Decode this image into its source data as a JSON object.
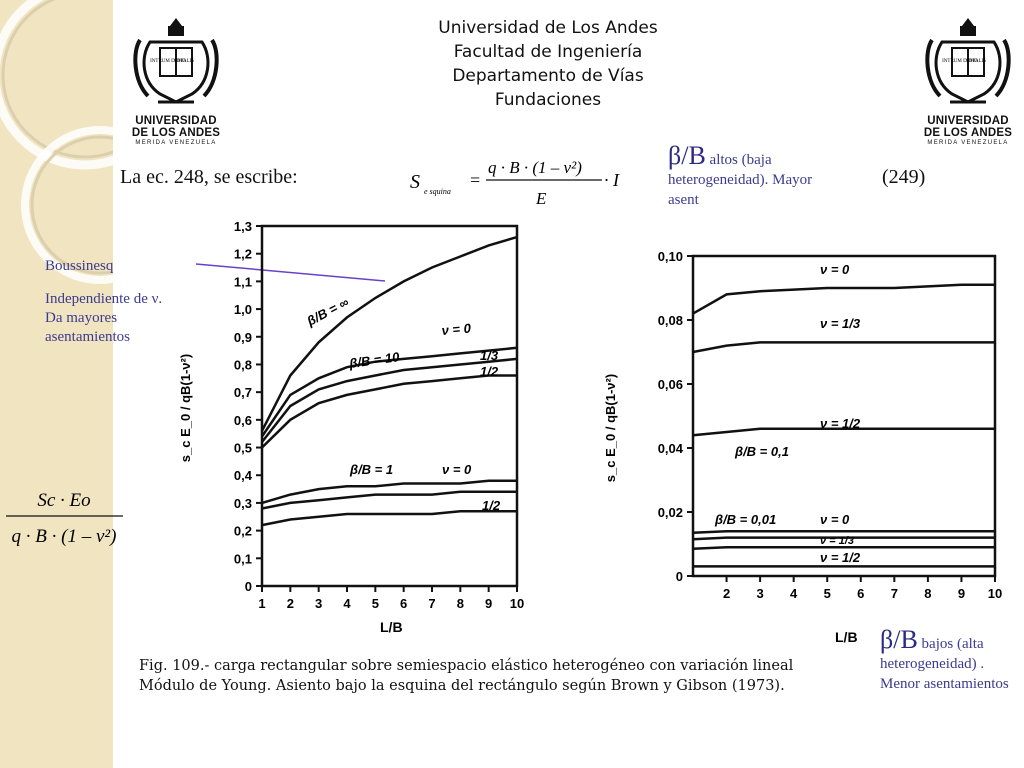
{
  "header": {
    "line1": "Universidad de Los Andes",
    "line2": "Facultad de Ingeniería",
    "line3": "Departamento de Vías",
    "line4": "Fundaciones"
  },
  "logo": {
    "line1": "UNIVERSIDAD",
    "line2": "DE LOS ANDES",
    "line3": "MERIDA VENEZUELA",
    "book_left": "INTRUM DEMO",
    "book_right": "SOTALIS"
  },
  "intro_text": "La ec. 248, se escribe:",
  "equation_number": "(249)",
  "formula": {
    "lhs": "S",
    "lhs_sub": "e squina",
    "num": "q · B · (1 – ν²)",
    "den": "E",
    "tail": "· I"
  },
  "annotation_top": {
    "symbol": "β/B",
    "text": " altos (baja heterogeneidad). Mayor asent"
  },
  "annotation_bottom": {
    "symbol": "β/B",
    "text": " bajos (alta heterogeneidad) . Menor asentamientos"
  },
  "boussinesq_label": "Boussinesq",
  "independent_note": "Independiente de ν. Da mayores asentamientos",
  "lhs_fraction": {
    "num": "Sc · Eo",
    "den": "q · B · (1 – ν²)"
  },
  "caption": "Fig. 109.- carga rectangular sobre semiespacio elástico heterogéneo con variación lineal  Módulo de Young. Asiento bajo la esquina del rectángulo según Brown y Gibson (1973).",
  "colors": {
    "sidebar": "#f1e4c1",
    "annotation": "#3b3b8f",
    "pointer_line": "#6a3fc9"
  },
  "chart_data": [
    {
      "type": "line",
      "xlabel": "L/B",
      "ylabel": "s_c E_0 / qB(1-ν²)",
      "xlim": [
        1,
        10
      ],
      "ylim": [
        0,
        1.3
      ],
      "x_ticks": [
        "1",
        "2",
        "3",
        "4",
        "5",
        "6",
        "7",
        "8",
        "9",
        "10"
      ],
      "y_ticks": [
        "0",
        "0,1",
        "0,2",
        "0,3",
        "0,4",
        "0,5",
        "0,6",
        "0,7",
        "0,8",
        "0,9",
        "1,0",
        "1,1",
        "1,2",
        "1,3"
      ],
      "labels": {
        "inf": "β/B = ∞",
        "ten": "β/B = 10",
        "one": "β/B = 1",
        "nu0a": "ν = 0",
        "nu13a": "1/3",
        "nu12a": "1/2",
        "nu0b": "ν = 0",
        "nu12b": "1/2"
      },
      "series": [
        {
          "x": [
            1,
            2,
            3,
            4,
            5,
            6,
            7,
            8,
            9,
            10
          ],
          "values": [
            0.56,
            0.76,
            0.88,
            0.97,
            1.04,
            1.1,
            1.15,
            1.19,
            1.23,
            1.26
          ]
        },
        {
          "x": [
            1,
            2,
            3,
            4,
            5,
            6,
            7,
            8,
            9,
            10
          ],
          "values": [
            0.54,
            0.69,
            0.75,
            0.79,
            0.81,
            0.82,
            0.83,
            0.84,
            0.85,
            0.86
          ]
        },
        {
          "x": [
            1,
            2,
            3,
            4,
            5,
            6,
            7,
            8,
            9,
            10
          ],
          "values": [
            0.52,
            0.65,
            0.71,
            0.74,
            0.76,
            0.78,
            0.79,
            0.8,
            0.81,
            0.82
          ]
        },
        {
          "x": [
            1,
            2,
            3,
            4,
            5,
            6,
            7,
            8,
            9,
            10
          ],
          "values": [
            0.5,
            0.6,
            0.66,
            0.69,
            0.71,
            0.73,
            0.74,
            0.75,
            0.76,
            0.76
          ]
        },
        {
          "x": [
            1,
            2,
            3,
            4,
            5,
            6,
            7,
            8,
            9,
            10
          ],
          "values": [
            0.3,
            0.33,
            0.35,
            0.36,
            0.36,
            0.37,
            0.37,
            0.37,
            0.38,
            0.38
          ]
        },
        {
          "x": [
            1,
            2,
            3,
            4,
            5,
            6,
            7,
            8,
            9,
            10
          ],
          "values": [
            0.28,
            0.3,
            0.31,
            0.32,
            0.33,
            0.33,
            0.33,
            0.34,
            0.34,
            0.34
          ]
        },
        {
          "x": [
            1,
            2,
            3,
            4,
            5,
            6,
            7,
            8,
            9,
            10
          ],
          "values": [
            0.22,
            0.24,
            0.25,
            0.26,
            0.26,
            0.26,
            0.26,
            0.27,
            0.27,
            0.27
          ]
        }
      ]
    },
    {
      "type": "line",
      "xlabel": "L/B",
      "ylabel": "s_c E_0 / qB(1-ν²)",
      "xlim": [
        1,
        10
      ],
      "ylim": [
        0,
        0.1
      ],
      "x_ticks": [
        "2",
        "3",
        "4",
        "5",
        "6",
        "7",
        "8",
        "9",
        "10"
      ],
      "y_ticks": [
        "0",
        "0,02",
        "0,04",
        "0,06",
        "0,08",
        "0,10"
      ],
      "labels": {
        "nu0top": "ν = 0",
        "nu13": "ν = 1/3",
        "nu12": "ν = 1/2",
        "b01": "β/B = 0,1",
        "b001": "β/B = 0,01",
        "nu0bot": "ν = 0",
        "nu13bot": "ν = 1/3",
        "nu12bot": "ν = 1/2"
      },
      "series": [
        {
          "x": [
            1,
            2,
            3,
            4,
            5,
            6,
            7,
            8,
            9,
            10
          ],
          "values": [
            0.082,
            0.088,
            0.089,
            0.0895,
            0.09,
            0.09,
            0.09,
            0.0905,
            0.091,
            0.091
          ]
        },
        {
          "x": [
            1,
            2,
            3,
            4,
            5,
            6,
            7,
            8,
            9,
            10
          ],
          "values": [
            0.07,
            0.072,
            0.073,
            0.073,
            0.073,
            0.073,
            0.073,
            0.073,
            0.073,
            0.073
          ]
        },
        {
          "x": [
            1,
            2,
            3,
            4,
            5,
            6,
            7,
            8,
            9,
            10
          ],
          "values": [
            0.044,
            0.045,
            0.046,
            0.046,
            0.046,
            0.046,
            0.046,
            0.046,
            0.046,
            0.046
          ]
        },
        {
          "x": [
            1,
            2,
            3,
            4,
            5,
            6,
            7,
            8,
            9,
            10
          ],
          "values": [
            0.0135,
            0.014,
            0.014,
            0.014,
            0.014,
            0.014,
            0.014,
            0.014,
            0.014,
            0.014
          ]
        },
        {
          "x": [
            1,
            2,
            3,
            4,
            5,
            6,
            7,
            8,
            9,
            10
          ],
          "values": [
            0.0115,
            0.012,
            0.012,
            0.012,
            0.012,
            0.012,
            0.012,
            0.012,
            0.012,
            0.012
          ]
        },
        {
          "x": [
            1,
            2,
            3,
            4,
            5,
            6,
            7,
            8,
            9,
            10
          ],
          "values": [
            0.0085,
            0.009,
            0.009,
            0.009,
            0.009,
            0.009,
            0.009,
            0.009,
            0.009,
            0.009
          ]
        },
        {
          "x": [
            1,
            2,
            3,
            4,
            5,
            6,
            7,
            8,
            9,
            10
          ],
          "values": [
            0.003,
            0.003,
            0.003,
            0.003,
            0.003,
            0.003,
            0.003,
            0.003,
            0.003,
            0.003
          ]
        }
      ]
    }
  ]
}
